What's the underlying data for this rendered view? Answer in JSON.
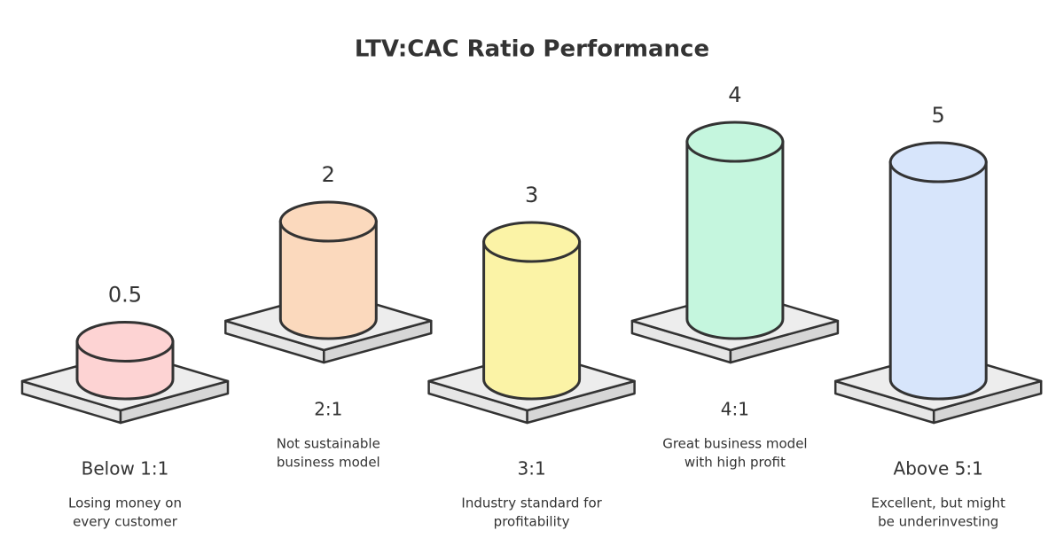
{
  "chart_data": {
    "type": "bar",
    "title": "LTV:CAC Ratio Performance",
    "categories": [
      "Below 1:1",
      "2:1",
      "3:1",
      "4:1",
      "Above 5:1"
    ],
    "values": [
      0.5,
      2,
      3,
      4,
      5
    ],
    "descriptions": [
      [
        "Losing money on",
        "every customer"
      ],
      [
        "Not sustainable",
        "business model"
      ],
      [
        "Industry standard for",
        "profitability"
      ],
      [
        "Great business model",
        "with high profit"
      ],
      [
        "Excellent, but might",
        "be underinvesting"
      ]
    ],
    "colors": [
      "#fdd3d3",
      "#fbd9bd",
      "#fbf3a6",
      "#c5f6de",
      "#d7e5fb"
    ]
  }
}
